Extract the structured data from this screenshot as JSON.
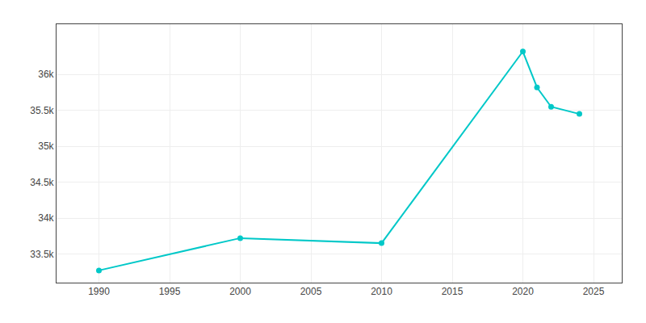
{
  "chart_data": {
    "type": "line",
    "x": [
      1990,
      2000,
      2010,
      2020,
      2021,
      2022,
      2024
    ],
    "values": [
      33270,
      33720,
      33650,
      36320,
      35820,
      35550,
      35450
    ],
    "color": "#00C8C8",
    "marker": "circle",
    "xlim": [
      1987,
      2027
    ],
    "xticks": [
      1990,
      1995,
      2000,
      2005,
      2010,
      2015,
      2020,
      2025
    ],
    "ylim": [
      33100,
      36700
    ],
    "yticks": [
      {
        "value": 33500,
        "label": "33.5k"
      },
      {
        "value": 34000,
        "label": "34k"
      },
      {
        "value": 34500,
        "label": "34.5k"
      },
      {
        "value": 35000,
        "label": "35k"
      },
      {
        "value": 35500,
        "label": "35.5k"
      },
      {
        "value": 36000,
        "label": "36k"
      }
    ],
    "grid": true
  }
}
